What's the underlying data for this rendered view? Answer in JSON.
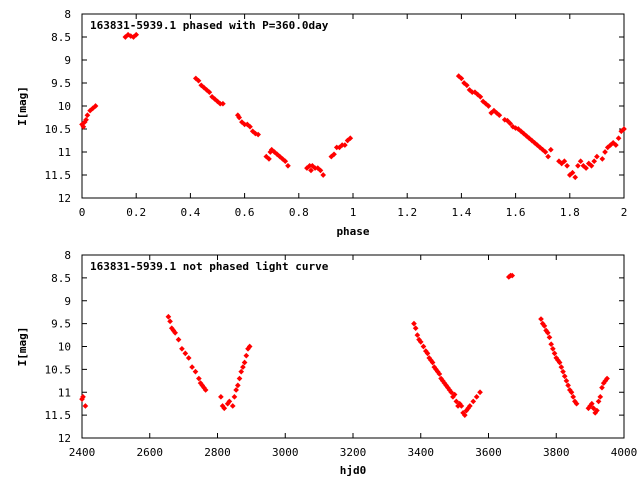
{
  "colors": {
    "marker": "#ff0000",
    "axis": "#000000",
    "background": "#ffffff"
  },
  "chart_data": [
    {
      "type": "scatter",
      "title": "163831-5939.1 phased with P=360.0day",
      "xlabel": "phase",
      "ylabel": "I[mag]",
      "xlim": [
        0,
        2
      ],
      "ylim": [
        12,
        8
      ],
      "y_inverted": true,
      "grid": false,
      "legend": "none",
      "xticks": [
        "0",
        "0.2",
        "0.4",
        "0.6",
        "0.8",
        "1",
        "1.2",
        "1.4",
        "1.6",
        "1.8",
        "2"
      ],
      "yticks": [
        "8",
        "8.5",
        "9",
        "9.5",
        "10",
        "10.5",
        "11",
        "11.5",
        "12"
      ],
      "series": [
        {
          "color": "#ff0000",
          "points": [
            [
              0.0,
              10.4
            ],
            [
              0.005,
              10.45
            ],
            [
              0.01,
              10.35
            ],
            [
              0.015,
              10.3
            ],
            [
              0.02,
              10.2
            ],
            [
              0.03,
              10.1
            ],
            [
              0.04,
              10.05
            ],
            [
              0.05,
              10.0
            ],
            [
              0.16,
              8.5
            ],
            [
              0.17,
              8.45
            ],
            [
              0.18,
              8.48
            ],
            [
              0.19,
              8.5
            ],
            [
              0.2,
              8.45
            ],
            [
              0.42,
              9.4
            ],
            [
              0.43,
              9.45
            ],
            [
              0.44,
              9.55
            ],
            [
              0.45,
              9.6
            ],
            [
              0.46,
              9.65
            ],
            [
              0.47,
              9.7
            ],
            [
              0.48,
              9.8
            ],
            [
              0.49,
              9.85
            ],
            [
              0.5,
              9.9
            ],
            [
              0.51,
              9.95
            ],
            [
              0.52,
              9.95
            ],
            [
              0.575,
              10.2
            ],
            [
              0.58,
              10.25
            ],
            [
              0.59,
              10.35
            ],
            [
              0.6,
              10.4
            ],
            [
              0.61,
              10.4
            ],
            [
              0.62,
              10.45
            ],
            [
              0.63,
              10.55
            ],
            [
              0.64,
              10.6
            ],
            [
              0.65,
              10.62
            ],
            [
              0.68,
              11.1
            ],
            [
              0.69,
              11.15
            ],
            [
              0.695,
              11.0
            ],
            [
              0.7,
              10.95
            ],
            [
              0.71,
              11.0
            ],
            [
              0.72,
              11.05
            ],
            [
              0.73,
              11.1
            ],
            [
              0.74,
              11.15
            ],
            [
              0.75,
              11.2
            ],
            [
              0.76,
              11.3
            ],
            [
              0.83,
              11.35
            ],
            [
              0.84,
              11.3
            ],
            [
              0.845,
              11.4
            ],
            [
              0.85,
              11.3
            ],
            [
              0.86,
              11.35
            ],
            [
              0.87,
              11.35
            ],
            [
              0.88,
              11.4
            ],
            [
              0.89,
              11.5
            ],
            [
              0.92,
              11.1
            ],
            [
              0.93,
              11.05
            ],
            [
              0.94,
              10.9
            ],
            [
              0.95,
              10.9
            ],
            [
              0.96,
              10.85
            ],
            [
              0.97,
              10.85
            ],
            [
              0.98,
              10.75
            ],
            [
              0.99,
              10.7
            ],
            [
              1.39,
              9.35
            ],
            [
              1.4,
              9.4
            ],
            [
              1.41,
              9.5
            ],
            [
              1.42,
              9.55
            ],
            [
              1.43,
              9.65
            ],
            [
              1.44,
              9.7
            ],
            [
              1.45,
              9.7
            ],
            [
              1.46,
              9.75
            ],
            [
              1.47,
              9.8
            ],
            [
              1.48,
              9.9
            ],
            [
              1.49,
              9.95
            ],
            [
              1.5,
              10.0
            ],
            [
              1.51,
              10.15
            ],
            [
              1.52,
              10.1
            ],
            [
              1.53,
              10.15
            ],
            [
              1.54,
              10.2
            ],
            [
              1.56,
              10.3
            ],
            [
              1.57,
              10.32
            ],
            [
              1.58,
              10.38
            ],
            [
              1.59,
              10.45
            ],
            [
              1.6,
              10.48
            ],
            [
              1.61,
              10.5
            ],
            [
              1.62,
              10.55
            ],
            [
              1.63,
              10.6
            ],
            [
              1.64,
              10.65
            ],
            [
              1.65,
              10.7
            ],
            [
              1.66,
              10.75
            ],
            [
              1.67,
              10.8
            ],
            [
              1.68,
              10.85
            ],
            [
              1.69,
              10.9
            ],
            [
              1.7,
              10.95
            ],
            [
              1.71,
              11.0
            ],
            [
              1.72,
              11.1
            ],
            [
              1.73,
              10.95
            ],
            [
              1.76,
              11.2
            ],
            [
              1.77,
              11.25
            ],
            [
              1.78,
              11.2
            ],
            [
              1.79,
              11.3
            ],
            [
              1.8,
              11.5
            ],
            [
              1.81,
              11.45
            ],
            [
              1.82,
              11.55
            ],
            [
              1.83,
              11.3
            ],
            [
              1.84,
              11.2
            ],
            [
              1.85,
              11.3
            ],
            [
              1.86,
              11.35
            ],
            [
              1.87,
              11.25
            ],
            [
              1.88,
              11.3
            ],
            [
              1.89,
              11.2
            ],
            [
              1.9,
              11.1
            ],
            [
              1.92,
              11.15
            ],
            [
              1.93,
              11.0
            ],
            [
              1.94,
              10.9
            ],
            [
              1.95,
              10.85
            ],
            [
              1.96,
              10.8
            ],
            [
              1.97,
              10.85
            ],
            [
              1.98,
              10.7
            ],
            [
              1.99,
              10.55
            ],
            [
              2.0,
              10.5
            ]
          ]
        }
      ]
    },
    {
      "type": "scatter",
      "title": "163831-5939.1 not phased light curve",
      "xlabel": "hjd0",
      "ylabel": "I[mag]",
      "xlim": [
        2400,
        4000
      ],
      "ylim": [
        12,
        8
      ],
      "y_inverted": true,
      "grid": false,
      "legend": "none",
      "xticks": [
        "2400",
        "2600",
        "2800",
        "3000",
        "3200",
        "3400",
        "3600",
        "3800",
        "4000"
      ],
      "yticks": [
        "8",
        "8.5",
        "9",
        "9.5",
        "10",
        "10.5",
        "11",
        "11.5",
        "12"
      ],
      "series": [
        {
          "color": "#ff0000",
          "points": [
            [
              2400,
              11.15
            ],
            [
              2403,
              11.1
            ],
            [
              2410,
              11.3
            ],
            [
              2655,
              9.35
            ],
            [
              2660,
              9.45
            ],
            [
              2665,
              9.6
            ],
            [
              2670,
              9.65
            ],
            [
              2675,
              9.7
            ],
            [
              2685,
              9.85
            ],
            [
              2695,
              10.05
            ],
            [
              2705,
              10.15
            ],
            [
              2715,
              10.25
            ],
            [
              2725,
              10.45
            ],
            [
              2735,
              10.55
            ],
            [
              2745,
              10.7
            ],
            [
              2750,
              10.8
            ],
            [
              2755,
              10.85
            ],
            [
              2760,
              10.9
            ],
            [
              2765,
              10.95
            ],
            [
              2810,
              11.1
            ],
            [
              2815,
              11.3
            ],
            [
              2820,
              11.35
            ],
            [
              2830,
              11.25
            ],
            [
              2835,
              11.2
            ],
            [
              2845,
              11.3
            ],
            [
              2850,
              11.1
            ],
            [
              2855,
              10.95
            ],
            [
              2860,
              10.85
            ],
            [
              2865,
              10.7
            ],
            [
              2870,
              10.55
            ],
            [
              2875,
              10.45
            ],
            [
              2880,
              10.35
            ],
            [
              2885,
              10.2
            ],
            [
              2890,
              10.05
            ],
            [
              2895,
              10.0
            ],
            [
              3380,
              9.5
            ],
            [
              3385,
              9.6
            ],
            [
              3390,
              9.75
            ],
            [
              3395,
              9.85
            ],
            [
              3400,
              9.9
            ],
            [
              3408,
              10.0
            ],
            [
              3415,
              10.1
            ],
            [
              3420,
              10.15
            ],
            [
              3425,
              10.25
            ],
            [
              3430,
              10.3
            ],
            [
              3435,
              10.35
            ],
            [
              3440,
              10.45
            ],
            [
              3445,
              10.5
            ],
            [
              3450,
              10.55
            ],
            [
              3455,
              10.6
            ],
            [
              3460,
              10.7
            ],
            [
              3465,
              10.75
            ],
            [
              3470,
              10.8
            ],
            [
              3475,
              10.85
            ],
            [
              3480,
              10.9
            ],
            [
              3485,
              10.95
            ],
            [
              3490,
              11.0
            ],
            [
              3495,
              11.1
            ],
            [
              3500,
              11.05
            ],
            [
              3505,
              11.2
            ],
            [
              3510,
              11.3
            ],
            [
              3515,
              11.25
            ],
            [
              3520,
              11.3
            ],
            [
              3525,
              11.45
            ],
            [
              3530,
              11.5
            ],
            [
              3535,
              11.4
            ],
            [
              3540,
              11.35
            ],
            [
              3545,
              11.3
            ],
            [
              3555,
              11.2
            ],
            [
              3565,
              11.1
            ],
            [
              3575,
              11.0
            ],
            [
              3660,
              8.48
            ],
            [
              3665,
              8.45
            ],
            [
              3670,
              8.45
            ],
            [
              3755,
              9.4
            ],
            [
              3760,
              9.5
            ],
            [
              3765,
              9.55
            ],
            [
              3770,
              9.65
            ],
            [
              3775,
              9.7
            ],
            [
              3780,
              9.8
            ],
            [
              3785,
              9.95
            ],
            [
              3790,
              10.05
            ],
            [
              3795,
              10.15
            ],
            [
              3800,
              10.25
            ],
            [
              3805,
              10.3
            ],
            [
              3810,
              10.35
            ],
            [
              3815,
              10.45
            ],
            [
              3820,
              10.55
            ],
            [
              3825,
              10.65
            ],
            [
              3830,
              10.75
            ],
            [
              3835,
              10.85
            ],
            [
              3840,
              10.95
            ],
            [
              3845,
              11.0
            ],
            [
              3850,
              11.1
            ],
            [
              3855,
              11.2
            ],
            [
              3860,
              11.25
            ],
            [
              3895,
              11.35
            ],
            [
              3900,
              11.3
            ],
            [
              3905,
              11.25
            ],
            [
              3910,
              11.35
            ],
            [
              3915,
              11.45
            ],
            [
              3920,
              11.4
            ],
            [
              3925,
              11.2
            ],
            [
              3930,
              11.1
            ],
            [
              3935,
              10.9
            ],
            [
              3940,
              10.8
            ],
            [
              3945,
              10.75
            ],
            [
              3950,
              10.7
            ]
          ]
        }
      ]
    }
  ]
}
